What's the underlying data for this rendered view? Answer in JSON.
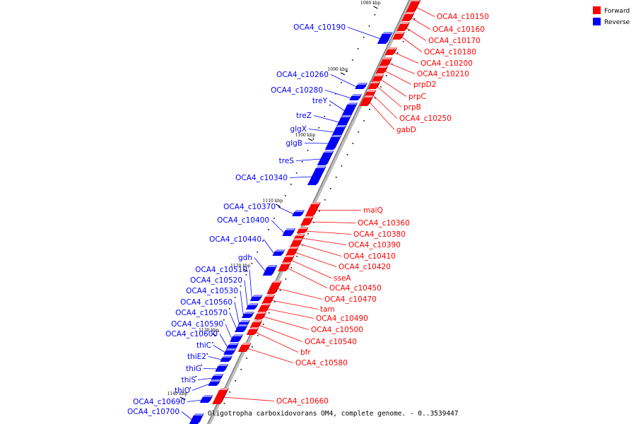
{
  "title": "Oligotropha carboxidovorans OM4, complete genome. - 0..3539447",
  "legend": [
    {
      "label": "Forward",
      "color": "#ff0000"
    },
    {
      "label": "Reverse",
      "color": "#0000ff"
    }
  ],
  "colors": {
    "forward": "#ff0000",
    "reverse": "#0000ff",
    "axis": "#999999"
  },
  "ticks": [
    "1080 kbp",
    "1090 kbp",
    "1100 kbp",
    "1110 kbp",
    "1120 kbp",
    "1130 kbp",
    "1140 kbp"
  ],
  "forward_genes": [
    "OCA4_c10150",
    "OCA4_c10160",
    "OCA4_c10170",
    "OCA4_c10180",
    "OCA4_c10200",
    "OCA4_c10210",
    "prpD2",
    "prpC",
    "prpB",
    "OCA4_c10250",
    "gabD",
    "malQ",
    "OCA4_c10360",
    "OCA4_c10380",
    "OCA4_c10390",
    "OCA4_c10410",
    "OCA4_c10420",
    "sseA",
    "OCA4_c10450",
    "OCA4_c10470",
    "tam",
    "OCA4_c10490",
    "OCA4_c10500",
    "OCA4_c10540",
    "bfr",
    "OCA4_c10580",
    "OCA4_c10660"
  ],
  "reverse_genes": [
    "OCA4_c10190",
    "OCA4_c10260",
    "OCA4_c10280",
    "treY",
    "treZ",
    "glgX",
    "glgB",
    "treS",
    "OCA4_c10340",
    "OCA4_c10370",
    "OCA4_c10400",
    "OCA4_c10440",
    "gdh",
    "OCA4_c10510",
    "OCA4_c10520",
    "OCA4_c10530",
    "OCA4_c10560",
    "OCA4_c10570",
    "OCA4_c10590",
    "OCA4_c10600",
    "thiC",
    "thiE2",
    "thiG",
    "thiS",
    "thiO",
    "OCA4_c10690",
    "OCA4_c10700"
  ]
}
